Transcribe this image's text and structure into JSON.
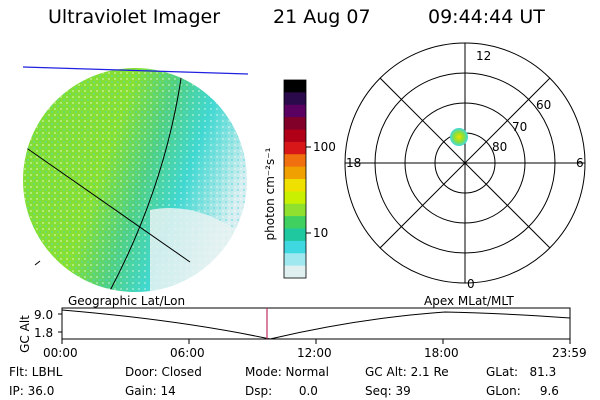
{
  "header": {
    "instrument": "Ultraviolet Imager",
    "date": "21 Aug 07",
    "time": "09:44:44 UT"
  },
  "colorbar": {
    "unit_label": "photon cm⁻²s⁻¹",
    "ticks": [
      "100",
      "10"
    ],
    "scale": "log",
    "colors": [
      "#000000",
      "#2a0a4a",
      "#5a0060",
      "#80002a",
      "#b00018",
      "#d81818",
      "#f07010",
      "#f0a000",
      "#f0e000",
      "#c8f000",
      "#90e030",
      "#40d060",
      "#20c8a0",
      "#40d8e0",
      "#a0e8f0",
      "#e0f0f0"
    ]
  },
  "polar_plot": {
    "mlt_labels": [
      "12",
      "18",
      "6",
      "0"
    ],
    "lat_labels": [
      "60",
      "70",
      "80"
    ]
  },
  "timeline": {
    "left_label": "Geographic Lat/Lon",
    "right_label": "Apex MLat/MLT",
    "y_axis_label": "GC Alt",
    "y_ticks": [
      "9.0",
      "1.8"
    ],
    "x_ticks": [
      "00:00",
      "06:00",
      "12:00",
      "18:00",
      "23:59"
    ],
    "cursor_color": "#c03060"
  },
  "status": {
    "flt": "Flt: LBHL",
    "ip": "IP: 36.0",
    "door": "Door: Closed",
    "gain": "Gain: 14",
    "mode": "Mode: Normal",
    "dsp": "Dsp:       0.0",
    "gcalt": "GC Alt: 2.1 Re",
    "seq": "Seq: 39",
    "glat": "GLat:   81.3",
    "glon": "GLon:     9.6"
  }
}
